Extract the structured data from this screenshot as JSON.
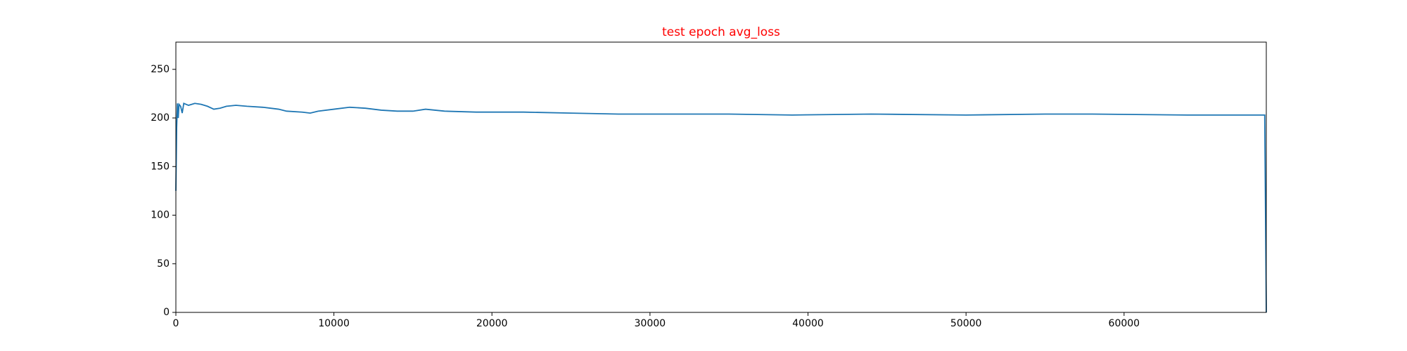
{
  "chart_data": {
    "type": "line",
    "title": "test epoch avg_loss",
    "title_color": "#ff0000",
    "x": [
      0,
      50,
      100,
      150,
      200,
      300,
      400,
      500,
      800,
      1200,
      1600,
      2000,
      2400,
      2800,
      3200,
      3800,
      4500,
      5500,
      6500,
      7000,
      8000,
      8500,
      9000,
      10000,
      11000,
      12000,
      13000,
      14000,
      15000,
      15800,
      17000,
      19000,
      22000,
      25000,
      28000,
      31000,
      35000,
      39000,
      44000,
      50000,
      55000,
      58000,
      64000,
      68900,
      69000
    ],
    "series": [
      {
        "color": "#1f77b4",
        "values": [
          125,
          190,
          215,
          200,
          214,
          212,
          205,
          215,
          213,
          215,
          214,
          212,
          209,
          210,
          212,
          213,
          212,
          211,
          209,
          207,
          206,
          205,
          207,
          209,
          211,
          210,
          208,
          207,
          207,
          209,
          207,
          206,
          206,
          205,
          204,
          204,
          204,
          203,
          204,
          203,
          204,
          204,
          203,
          203,
          0
        ]
      }
    ],
    "xlim": [
      0,
      69000
    ],
    "ylim": [
      0,
      278
    ],
    "xticks": [
      0,
      10000,
      20000,
      30000,
      40000,
      50000,
      60000
    ],
    "yticks": [
      0,
      50,
      100,
      150,
      200,
      250
    ],
    "grid": false
  }
}
